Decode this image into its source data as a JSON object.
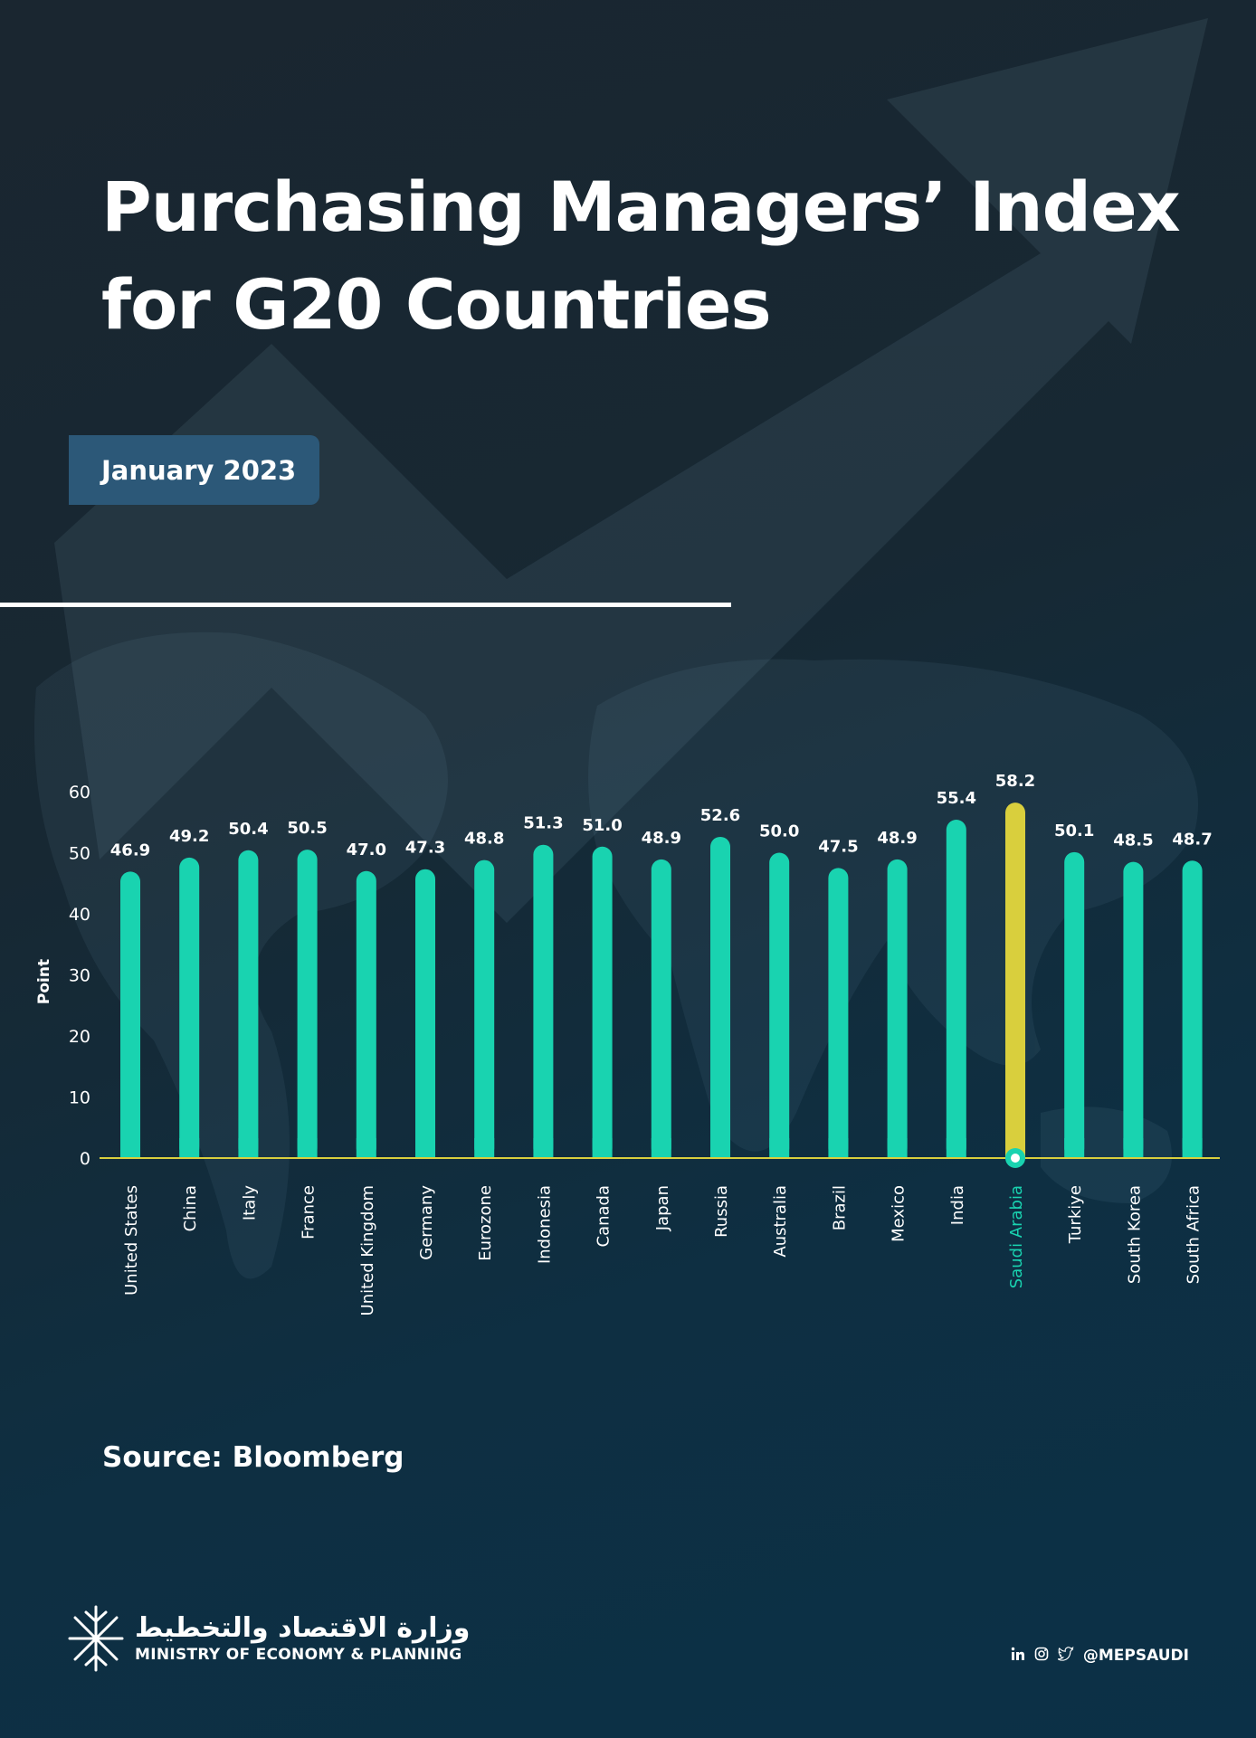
{
  "header": {
    "title_line1": "Purchasing Managers’ Index",
    "title_line2": "for G20 Countries",
    "date_badge": "January 2023"
  },
  "chart_data": {
    "type": "bar",
    "ylabel": "Point",
    "ylim": [
      0,
      60
    ],
    "yticks": [
      0,
      10,
      20,
      30,
      40,
      50,
      60
    ],
    "categories": [
      "United States",
      "China",
      "Italy",
      "France",
      "United Kingdom",
      "Germany",
      "Eurozone",
      "Indonesia",
      "Canada",
      "Japan",
      "Russia",
      "Australia",
      "Brazil",
      "Mexico",
      "India",
      "Saudi Arabia",
      "Turkiye",
      "South Korea",
      "South Africa"
    ],
    "values": [
      46.9,
      49.2,
      50.4,
      50.5,
      47.0,
      47.3,
      48.8,
      51.3,
      51.0,
      48.9,
      52.6,
      50.0,
      47.5,
      48.9,
      55.4,
      58.2,
      50.1,
      48.5,
      48.7
    ],
    "value_labels": [
      "46.9",
      "49.2",
      "50.4",
      "50.5",
      "47.0",
      "47.3",
      "48.8",
      "51.3",
      "51.0",
      "48.9",
      "52.6",
      "50.0",
      "47.5",
      "48.9",
      "55.4",
      "58.2",
      "50.1",
      "48.5",
      "48.7"
    ],
    "highlight": "Saudi Arabia",
    "colors": {
      "bar": "#19d3b0",
      "highlight_bar": "#d9cf3d",
      "highlight_label": "#19d3b0",
      "baseline": "#d9cf3d"
    },
    "grid": false
  },
  "footer": {
    "source": "Source: Bloomberg",
    "logo_arabic": "وزارة الاقتصاد والتخطيط",
    "logo_english": "MINISTRY OF ECONOMY & PLANNING",
    "social_icons": [
      "linkedin-icon",
      "instagram-icon",
      "twitter-icon"
    ],
    "social_handle": "@MEPSAUDI"
  }
}
